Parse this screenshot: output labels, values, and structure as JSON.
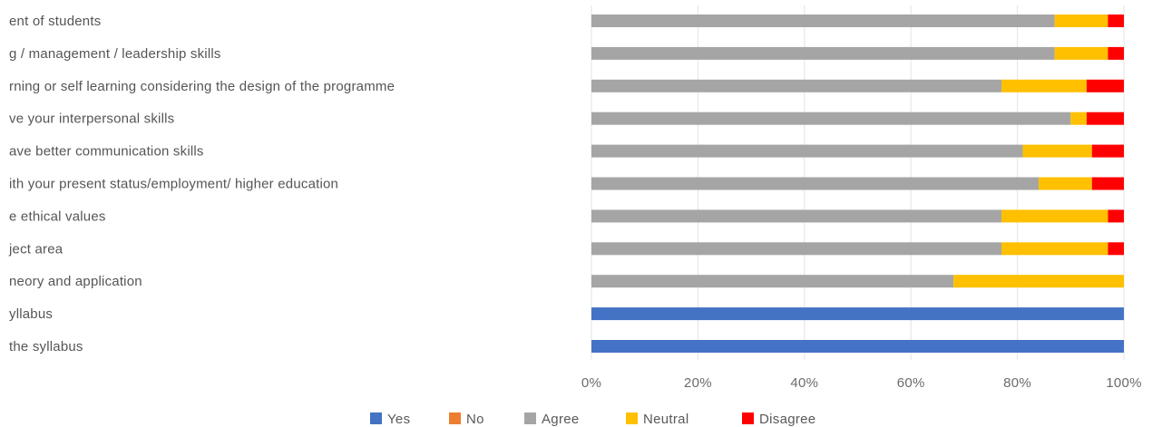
{
  "chart_data": {
    "type": "bar",
    "orientation": "horizontal",
    "stacked": "percent",
    "categories": [
      "ent of students",
      "g / management / leadership skills",
      "rning or self learning considering the design of the programme",
      "ve your interpersonal skills",
      "ave better communication skills",
      "ith your present status/employment/ higher education",
      "e ethical values",
      "ject area",
      "neory and application",
      "yllabus",
      "the syllabus"
    ],
    "series": [
      {
        "name": "Yes",
        "color": "#4472C4",
        "values": [
          0,
          0,
          0,
          0,
          0,
          0,
          0,
          0,
          0,
          100,
          100
        ]
      },
      {
        "name": "No",
        "color": "#ED7D31",
        "values": [
          0,
          0,
          0,
          0,
          0,
          0,
          0,
          0,
          0,
          0,
          0
        ]
      },
      {
        "name": "Agree",
        "color": "#A5A5A5",
        "values": [
          87,
          87,
          77,
          90,
          81,
          84,
          77,
          77,
          68,
          0,
          0
        ]
      },
      {
        "name": "Neutral",
        "color": "#FFC000",
        "values": [
          10,
          10,
          16,
          3,
          13,
          10,
          20,
          20,
          32,
          0,
          0
        ]
      },
      {
        "name": "Disagree",
        "color": "#FF0000",
        "values": [
          3,
          3,
          7,
          7,
          6,
          6,
          3,
          3,
          0,
          0,
          0
        ]
      }
    ],
    "xlim": [
      0,
      100
    ],
    "xticks": [
      "0%",
      "20%",
      "40%",
      "60%",
      "80%",
      "100%"
    ],
    "grid": true,
    "legend_position": "bottom"
  }
}
